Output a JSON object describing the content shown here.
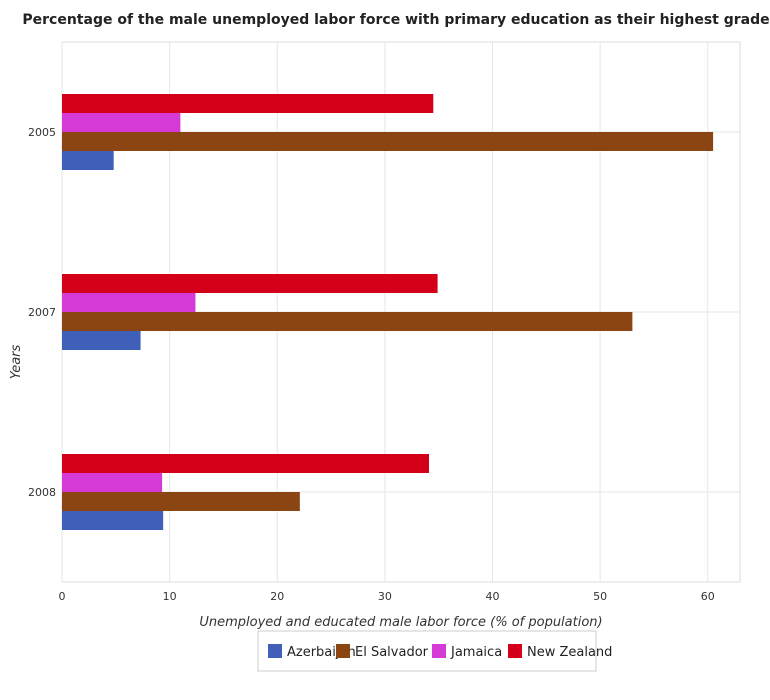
{
  "chart_data": {
    "type": "bar",
    "orientation": "horizontal",
    "title": "Percentage of the male unemployed labor force with primary education as their highest grade",
    "xlabel": "Unemployed and educated male labor force (% of population)",
    "ylabel": "Years",
    "categories": [
      "2005",
      "2007",
      "2008"
    ],
    "xlim": [
      0,
      63
    ],
    "xticks": [
      0,
      10,
      20,
      30,
      40,
      50,
      60
    ],
    "grid": true,
    "legend_position": "bottom",
    "series": [
      {
        "name": "Azerbaijan",
        "color": "#3f5fb8",
        "values": [
          4.8,
          7.3,
          9.4
        ]
      },
      {
        "name": "El Salvador",
        "color": "#8b4513",
        "values": [
          60.5,
          53.0,
          22.1
        ]
      },
      {
        "name": "Jamaica",
        "color": "#d63ad6",
        "values": [
          11.0,
          12.4,
          9.3
        ]
      },
      {
        "name": "New Zealand",
        "color": "#d4001a",
        "values": [
          34.5,
          34.9,
          34.1
        ]
      }
    ]
  }
}
